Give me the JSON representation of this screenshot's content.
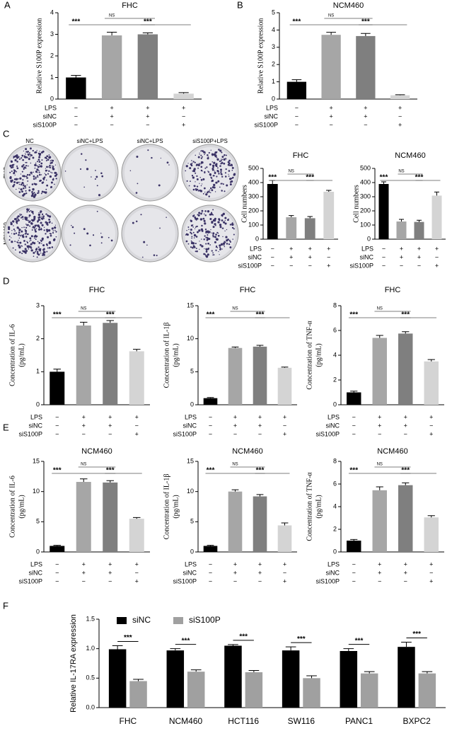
{
  "chart_data": [
    {
      "type": "bar",
      "panel": "A",
      "title": "FHC",
      "ylabel": "Relative S100P expression",
      "values": [
        1.0,
        2.95,
        3.0,
        0.25
      ],
      "errors": [
        0.1,
        0.15,
        0.07,
        0.05
      ],
      "colors": [
        "#000000",
        "#a6a6a6",
        "#7f7f7f",
        "#d4d4d4"
      ],
      "ylim": [
        0,
        4
      ],
      "yticks": [
        0,
        1,
        2,
        3,
        4
      ],
      "significance": [
        "***",
        "NS",
        "***"
      ],
      "conditions": {
        "rows": [
          "LPS",
          "siNC",
          "siS100P"
        ],
        "signs": [
          [
            "−",
            "+",
            "+",
            "+"
          ],
          [
            "−",
            "+",
            "+",
            "−"
          ],
          [
            "−",
            "−",
            "−",
            "+"
          ]
        ]
      }
    },
    {
      "type": "bar",
      "panel": "B",
      "title": "NCM460",
      "ylabel": "Relative S100P expression",
      "values": [
        1.0,
        3.72,
        3.65,
        0.22
      ],
      "errors": [
        0.12,
        0.15,
        0.15,
        0.03
      ],
      "colors": [
        "#000000",
        "#a6a6a6",
        "#7f7f7f",
        "#d4d4d4"
      ],
      "ylim": [
        0,
        5
      ],
      "yticks": [
        0,
        1,
        2,
        3,
        4,
        5
      ],
      "significance": [
        "***",
        "NS",
        "***"
      ],
      "conditions": {
        "rows": [
          "LPS",
          "siNC",
          "siS100P"
        ],
        "signs": [
          [
            "−",
            "+",
            "+",
            "+"
          ],
          [
            "−",
            "+",
            "+",
            "−"
          ],
          [
            "−",
            "−",
            "−",
            "+"
          ]
        ]
      }
    },
    {
      "type": "image-grid",
      "panel": "C",
      "columns": [
        "NC",
        "siNC+LPS",
        "siNC+LPS",
        "siS100P+LPS"
      ],
      "rows": [
        "FHC",
        "NCM460"
      ]
    },
    {
      "type": "bar",
      "title": "FHC",
      "ylabel": "Cell numbers",
      "values": [
        390,
        155,
        148,
        335
      ],
      "errors": [
        25,
        12,
        12,
        10
      ],
      "colors": [
        "#000000",
        "#a6a6a6",
        "#7f7f7f",
        "#d4d4d4"
      ],
      "ylim": [
        0,
        500
      ],
      "yticks": [
        0,
        100,
        200,
        300,
        400,
        500
      ],
      "significance": [
        "***",
        "NS",
        "***"
      ],
      "conditions": {
        "rows": [
          "LPS",
          "siNC",
          "siS100P"
        ],
        "signs": [
          [
            "−",
            "+",
            "+",
            "+"
          ],
          [
            "−",
            "+",
            "+",
            "−"
          ],
          [
            "−",
            "−",
            "−",
            "+"
          ]
        ]
      }
    },
    {
      "type": "bar",
      "title": "NCM460",
      "ylabel": "Cell numbers",
      "values": [
        390,
        125,
        122,
        308
      ],
      "errors": [
        15,
        15,
        12,
        25
      ],
      "colors": [
        "#000000",
        "#a6a6a6",
        "#7f7f7f",
        "#d4d4d4"
      ],
      "ylim": [
        0,
        500
      ],
      "yticks": [
        0,
        100,
        200,
        300,
        400,
        500
      ],
      "significance": [
        "***",
        "NS",
        "***"
      ],
      "conditions": {
        "rows": [
          "LPS",
          "siNC",
          "siS100P"
        ],
        "signs": [
          [
            "−",
            "+",
            "+",
            "+"
          ],
          [
            "−",
            "+",
            "+",
            "−"
          ],
          [
            "−",
            "−",
            "−",
            "+"
          ]
        ]
      }
    },
    {
      "type": "bar",
      "panel": "D",
      "title": "FHC",
      "ylabel": [
        "Concentration of IL-6",
        "(pg/mL)"
      ],
      "values": [
        1.0,
        2.4,
        2.48,
        1.62
      ],
      "errors": [
        0.08,
        0.1,
        0.07,
        0.06
      ],
      "colors": [
        "#000000",
        "#a6a6a6",
        "#7f7f7f",
        "#d4d4d4"
      ],
      "ylim": [
        0,
        3
      ],
      "yticks": [
        0,
        1,
        2,
        3
      ],
      "significance": [
        "***",
        "NS",
        "***"
      ],
      "conditions": {
        "rows": [
          "LPS",
          "siNC",
          "siS100P"
        ],
        "signs": [
          [
            "−",
            "+",
            "+",
            "+"
          ],
          [
            "−",
            "+",
            "+",
            "−"
          ],
          [
            "−",
            "−",
            "−",
            "+"
          ]
        ]
      }
    },
    {
      "type": "bar",
      "title": "FHC",
      "ylabel": [
        "Concentration of IL-1β",
        "(pg/mL)"
      ],
      "values": [
        1.0,
        8.6,
        8.8,
        5.6
      ],
      "errors": [
        0.1,
        0.15,
        0.2,
        0.1
      ],
      "colors": [
        "#000000",
        "#a6a6a6",
        "#7f7f7f",
        "#d4d4d4"
      ],
      "ylim": [
        0,
        15
      ],
      "yticks": [
        0,
        5,
        10,
        15
      ],
      "significance": [
        "***",
        "NS",
        "***"
      ],
      "conditions": {
        "rows": [
          "LPS",
          "siNC",
          "siS100P"
        ],
        "signs": [
          [
            "−",
            "+",
            "+",
            "+"
          ],
          [
            "−",
            "+",
            "+",
            "−"
          ],
          [
            "−",
            "−",
            "−",
            "+"
          ]
        ]
      }
    },
    {
      "type": "bar",
      "title": "FHC",
      "ylabel": [
        "Concentration of TNF-α",
        "(pg/mL)"
      ],
      "values": [
        1.0,
        5.4,
        5.75,
        3.5
      ],
      "errors": [
        0.1,
        0.2,
        0.15,
        0.15
      ],
      "colors": [
        "#000000",
        "#a6a6a6",
        "#7f7f7f",
        "#d4d4d4"
      ],
      "ylim": [
        0,
        8
      ],
      "yticks": [
        0,
        2,
        4,
        6,
        8
      ],
      "significance": [
        "***",
        "NS",
        "***"
      ],
      "conditions": {
        "rows": [
          "LPS",
          "siNC",
          "siS100P"
        ],
        "signs": [
          [
            "−",
            "+",
            "+",
            "+"
          ],
          [
            "−",
            "+",
            "+",
            "−"
          ],
          [
            "−",
            "−",
            "−",
            "+"
          ]
        ]
      }
    },
    {
      "type": "bar",
      "panel": "E",
      "title": "NCM460",
      "ylabel": [
        "Concentration of IL-6",
        "(pg/mL)"
      ],
      "values": [
        1.0,
        11.6,
        11.5,
        5.5
      ],
      "errors": [
        0.1,
        0.5,
        0.3,
        0.2
      ],
      "colors": [
        "#000000",
        "#a6a6a6",
        "#7f7f7f",
        "#d4d4d4"
      ],
      "ylim": [
        0,
        15
      ],
      "yticks": [
        0,
        5,
        10,
        15
      ],
      "significance": [
        "***",
        "NS",
        "***"
      ],
      "conditions": {
        "rows": [
          "LPS",
          "siNC",
          "siS100P"
        ],
        "signs": [
          [
            "−",
            "+",
            "+",
            "+"
          ],
          [
            "−",
            "+",
            "+",
            "−"
          ],
          [
            "−",
            "−",
            "−",
            "+"
          ]
        ]
      }
    },
    {
      "type": "bar",
      "title": "NCM460",
      "ylabel": [
        "Concentration of IL-1β",
        "(pg/mL)"
      ],
      "values": [
        1.0,
        10.0,
        9.2,
        4.4
      ],
      "errors": [
        0.1,
        0.3,
        0.3,
        0.4
      ],
      "colors": [
        "#000000",
        "#a6a6a6",
        "#7f7f7f",
        "#d4d4d4"
      ],
      "ylim": [
        0,
        15
      ],
      "yticks": [
        0,
        5,
        10,
        15
      ],
      "significance": [
        "***",
        "NS",
        "***"
      ],
      "conditions": {
        "rows": [
          "LPS",
          "siNC",
          "siS100P"
        ],
        "signs": [
          [
            "−",
            "+",
            "+",
            "+"
          ],
          [
            "−",
            "+",
            "+",
            "−"
          ],
          [
            "−",
            "−",
            "−",
            "+"
          ]
        ]
      }
    },
    {
      "type": "bar",
      "title": "NCM460",
      "ylabel": [
        "Concentration of TNF-α",
        "(pg/mL)"
      ],
      "values": [
        1.0,
        5.45,
        5.9,
        3.05
      ],
      "errors": [
        0.1,
        0.3,
        0.2,
        0.15
      ],
      "colors": [
        "#000000",
        "#a6a6a6",
        "#7f7f7f",
        "#d4d4d4"
      ],
      "ylim": [
        0,
        8
      ],
      "yticks": [
        0,
        2,
        4,
        6,
        8
      ],
      "significance": [
        "***",
        "NS",
        "***"
      ],
      "conditions": {
        "rows": [
          "LPS",
          "siNC",
          "siS100P"
        ],
        "signs": [
          [
            "−",
            "+",
            "+",
            "+"
          ],
          [
            "−",
            "+",
            "+",
            "−"
          ],
          [
            "−",
            "−",
            "−",
            "+"
          ]
        ]
      }
    },
    {
      "type": "grouped-bar",
      "panel": "F",
      "ylabel": "Relative IL-17RA expression",
      "categories": [
        "FHC",
        "NCM460",
        "HCT116",
        "SW116",
        "PANC1",
        "BXPC2"
      ],
      "series": [
        {
          "name": "siNC",
          "color": "#000000",
          "values": [
            0.99,
            0.97,
            1.05,
            0.97,
            0.96,
            1.03
          ],
          "errors": [
            0.06,
            0.03,
            0.02,
            0.06,
            0.04,
            0.08
          ]
        },
        {
          "name": "siS100P",
          "color": "#a0a0a0",
          "values": [
            0.45,
            0.61,
            0.6,
            0.5,
            0.58,
            0.58
          ],
          "errors": [
            0.03,
            0.03,
            0.03,
            0.04,
            0.03,
            0.03
          ]
        }
      ],
      "ylim": [
        0,
        1.5
      ],
      "yticks": [
        {
          "value": 0,
          "label": "0.0"
        },
        {
          "value": 0.5,
          "label": "0.5"
        },
        {
          "value": 1,
          "label": "1.0"
        },
        {
          "value": 1.5,
          "label": "1.5"
        }
      ],
      "significance": [
        "***",
        "***",
        "***",
        "***",
        "***",
        "***"
      ],
      "legend": "top-left"
    }
  ]
}
